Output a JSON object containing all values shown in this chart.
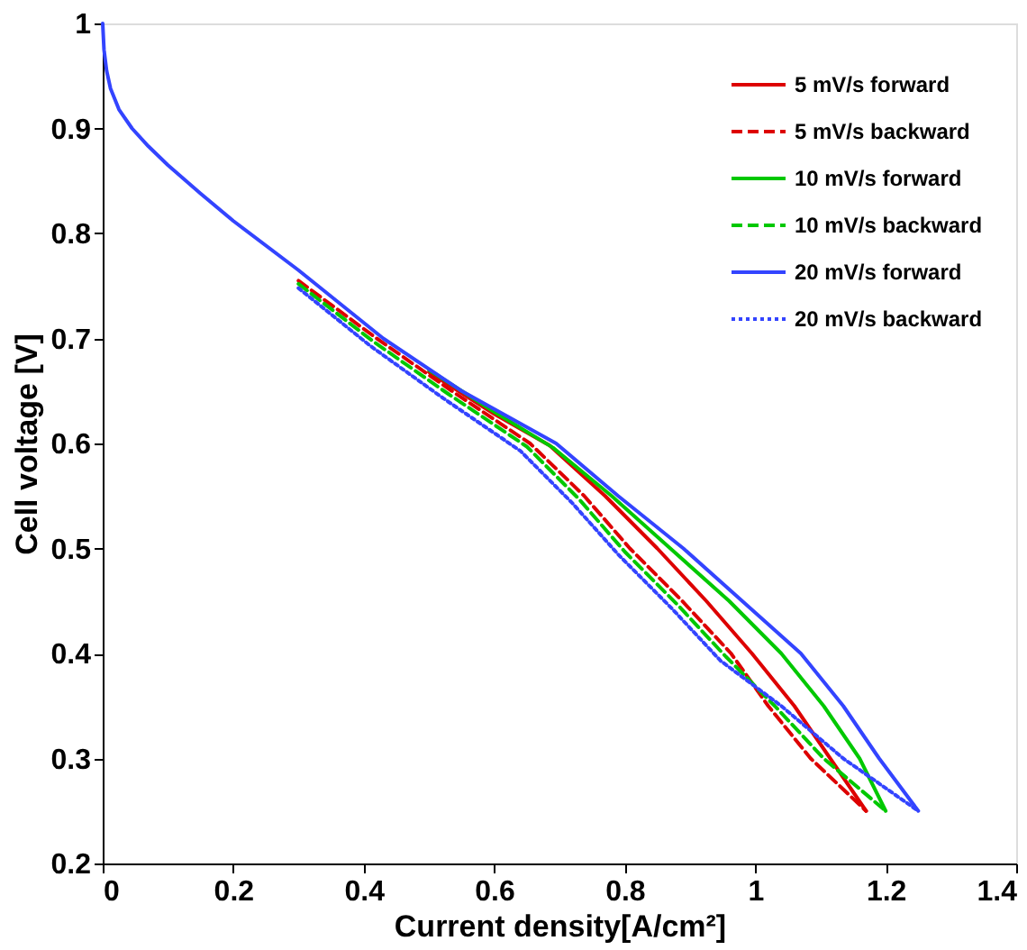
{
  "chart_data": {
    "type": "line",
    "xlabel": "Current density[A/cm²]",
    "ylabel": "Cell voltage [V]",
    "xlim": [
      0,
      1.4
    ],
    "ylim": [
      0.2,
      1
    ],
    "xticks": [
      0,
      0.2,
      0.4,
      0.6,
      0.8,
      1,
      1.2,
      1.4
    ],
    "yticks": [
      0.2,
      0.3,
      0.4,
      0.5,
      0.6,
      0.7,
      0.8,
      0.9,
      1
    ],
    "grid": false,
    "legend": "top right",
    "marker": "none",
    "series": [
      {
        "name": "5 mV/s forward",
        "color": "#dd0000",
        "line_style": "solid",
        "x": [
          0.5,
          0.6,
          0.685,
          0.77,
          0.85,
          0.925,
          0.995,
          1.06,
          1.115,
          1.17
        ],
        "values": [
          0.668,
          0.628,
          0.598,
          0.55,
          0.5,
          0.45,
          0.4,
          0.35,
          0.3,
          0.25
        ]
      },
      {
        "name": "5 mV/s backward",
        "color": "#dd0000",
        "line_style": "dashed",
        "x": [
          0.3,
          0.42,
          0.535,
          0.655,
          0.738,
          0.808,
          0.888,
          0.963,
          1.02,
          1.085,
          1.17
        ],
        "values": [
          0.755,
          0.7,
          0.65,
          0.6,
          0.55,
          0.5,
          0.45,
          0.4,
          0.35,
          0.3,
          0.25
        ]
      },
      {
        "name": "10 mV/s forward",
        "color": "#00c800",
        "line_style": "solid",
        "x": [
          0.5,
          0.6,
          0.69,
          0.78,
          0.87,
          0.96,
          1.04,
          1.105,
          1.16,
          1.2
        ],
        "values": [
          0.67,
          0.63,
          0.596,
          0.55,
          0.5,
          0.45,
          0.4,
          0.35,
          0.3,
          0.25
        ]
      },
      {
        "name": "10 mV/s backward",
        "color": "#00c800",
        "line_style": "dashed",
        "x": [
          0.3,
          0.415,
          0.53,
          0.65,
          0.73,
          0.8,
          0.88,
          0.955,
          1.03,
          1.105,
          1.2
        ],
        "values": [
          0.752,
          0.697,
          0.647,
          0.597,
          0.547,
          0.497,
          0.447,
          0.397,
          0.35,
          0.3,
          0.25
        ]
      },
      {
        "name": "20 mV/s forward",
        "color": "#3344ff",
        "line_style": "solid",
        "x": [
          0,
          0.002,
          0.006,
          0.012,
          0.025,
          0.045,
          0.07,
          0.1,
          0.15,
          0.2,
          0.3,
          0.43,
          0.55,
          0.695,
          0.79,
          0.89,
          0.98,
          1.07,
          1.135,
          1.19,
          1.25
        ],
        "values": [
          1,
          0.975,
          0.955,
          0.938,
          0.918,
          0.9,
          0.883,
          0.865,
          0.838,
          0.812,
          0.765,
          0.7,
          0.65,
          0.6,
          0.55,
          0.5,
          0.45,
          0.4,
          0.35,
          0.3,
          0.25
        ]
      },
      {
        "name": "20 mV/s backward",
        "color": "#3344ff",
        "line_style": "dotted",
        "x": [
          0.3,
          0.41,
          0.522,
          0.64,
          0.72,
          0.792,
          0.872,
          0.947,
          1.04,
          1.135,
          1.25
        ],
        "values": [
          0.748,
          0.693,
          0.643,
          0.593,
          0.543,
          0.493,
          0.443,
          0.393,
          0.35,
          0.3,
          0.25
        ]
      }
    ]
  }
}
